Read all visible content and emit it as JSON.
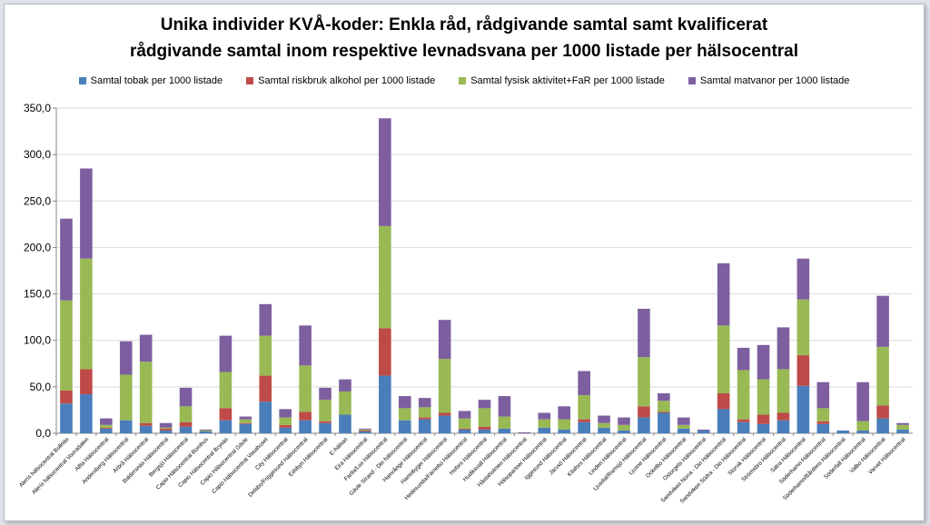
{
  "colors": {
    "tobak": "#4a7ebb",
    "alkohol": "#be4b48",
    "fysisk": "#98b954",
    "matvanor": "#7d5fa0",
    "grid": "#d9d9d9",
    "axis": "#868686"
  },
  "chart_data": {
    "type": "bar",
    "stacked": true,
    "title_lines": [
      "Unika individer KVÅ-koder: Enkla råd, rådgivande samtal samt kvalificerat",
      "rådgivande samtal inom respektive levnadsvana per 1000 listade per hälsocentral"
    ],
    "legend_position": "top",
    "grid": true,
    "ylim": [
      0,
      350
    ],
    "yticks": [
      "0,0",
      "50,0",
      "100,0",
      "150,0",
      "200,0",
      "250,0",
      "300,0",
      "350,0"
    ],
    "ytick_values": [
      0,
      50,
      100,
      150,
      200,
      250,
      300,
      350
    ],
    "categories": [
      "Alerís hälsocentral Bollnäs",
      "Alerís hälsocentral Vooradalen",
      "Alfta Hälsocentral",
      "Andersberg Hälsocentral",
      "Arbrå Hälsocentral",
      "Baldersnäs Hälsocentral",
      "Bergsjö Hälsocentral",
      "Capio Hälsocentral Bomhus",
      "Capio Hälsocentral Brynäs",
      "Capio Hälsocentral Gävle",
      "Capio Hälsocentral Vasahuset",
      "City Hälsocentral",
      "Delsbo/Friggesund Hälsocentral",
      "Edsbyn Hälsocentral",
      "E-hälsan",
      "Eira Hälsocentral",
      "Farila/Los Hälsocentral",
      "Gävle Strand - Din hälsocentral",
      "Hamrånge Hälsocentral",
      "Hamnbyger Hälsocentral",
      "Hedesunda/Färnebo Hälsocentral",
      "Hofors Hälsocentral",
      "Hudiksvall Hälsocentral",
      "Håstaholmen Hälsocentral",
      "Hälsopartner Hälsocentral",
      "Iggesund Hälsocentral",
      "Järvsö Hälsocentral",
      "Kilafors Hälsocentral",
      "Linden Hälsocentral",
      "Ljusdal/Ramsjö Hälsocentral",
      "Ljusne Hälsocentral",
      "Ockelbo Hälsocentral",
      "Ostorgets Hälsocentral",
      "Sandviken Norra - Din Hälsocentral",
      "Sandviken Södra - Din Hälsocentral",
      "Storvik Hälsocentral",
      "Strömsbro Hälsocentral",
      "Sätra Hälsocentral",
      "Söderhamn Hälsocentral",
      "Söderhamn/Bårdens Hälsocentral",
      "Söderfall Hälsocentral",
      "Valbo Hälsocentral",
      "Varvet Hälsocentral"
    ],
    "series": [
      {
        "name": "Samtal tobak per 1000 listade",
        "values": [
          32,
          42,
          5,
          14,
          8,
          3,
          7,
          2,
          14,
          10,
          34,
          6,
          14,
          11,
          20,
          2,
          62,
          14,
          15,
          19,
          4,
          4,
          5,
          0,
          6,
          4,
          12,
          6,
          3,
          17,
          22,
          5,
          3,
          26,
          12,
          10,
          14,
          51,
          10,
          3,
          3,
          16,
          4
        ]
      },
      {
        "name": "Samtal riskbruk alkohol per 1000 listade",
        "values": [
          14,
          27,
          1,
          0,
          3,
          2,
          5,
          0,
          13,
          1,
          28,
          3,
          9,
          2,
          0,
          1,
          51,
          0,
          2,
          3,
          1,
          3,
          0,
          0,
          0,
          0,
          3,
          0,
          0,
          12,
          1,
          0,
          0,
          17,
          3,
          10,
          8,
          33,
          3,
          0,
          0,
          14,
          0
        ]
      },
      {
        "name": "Samtal fysisk aktivitet+FaR per 1000 listade",
        "values": [
          97,
          119,
          3,
          49,
          66,
          1,
          17,
          1,
          39,
          4,
          43,
          8,
          50,
          23,
          25,
          1,
          110,
          13,
          11,
          58,
          11,
          20,
          13,
          0,
          9,
          11,
          26,
          5,
          6,
          53,
          12,
          4,
          0,
          73,
          53,
          38,
          47,
          60,
          14,
          0,
          10,
          63,
          5
        ]
      },
      {
        "name": "Samtal matvanor per 1000 listade",
        "values": [
          88,
          97,
          7,
          36,
          29,
          5,
          20,
          1,
          39,
          3,
          34,
          9,
          43,
          13,
          13,
          1,
          116,
          13,
          10,
          42,
          8,
          9,
          22,
          1,
          7,
          14,
          26,
          8,
          8,
          52,
          8,
          8,
          1,
          67,
          24,
          37,
          45,
          44,
          28,
          0,
          42,
          55,
          2
        ]
      }
    ]
  }
}
